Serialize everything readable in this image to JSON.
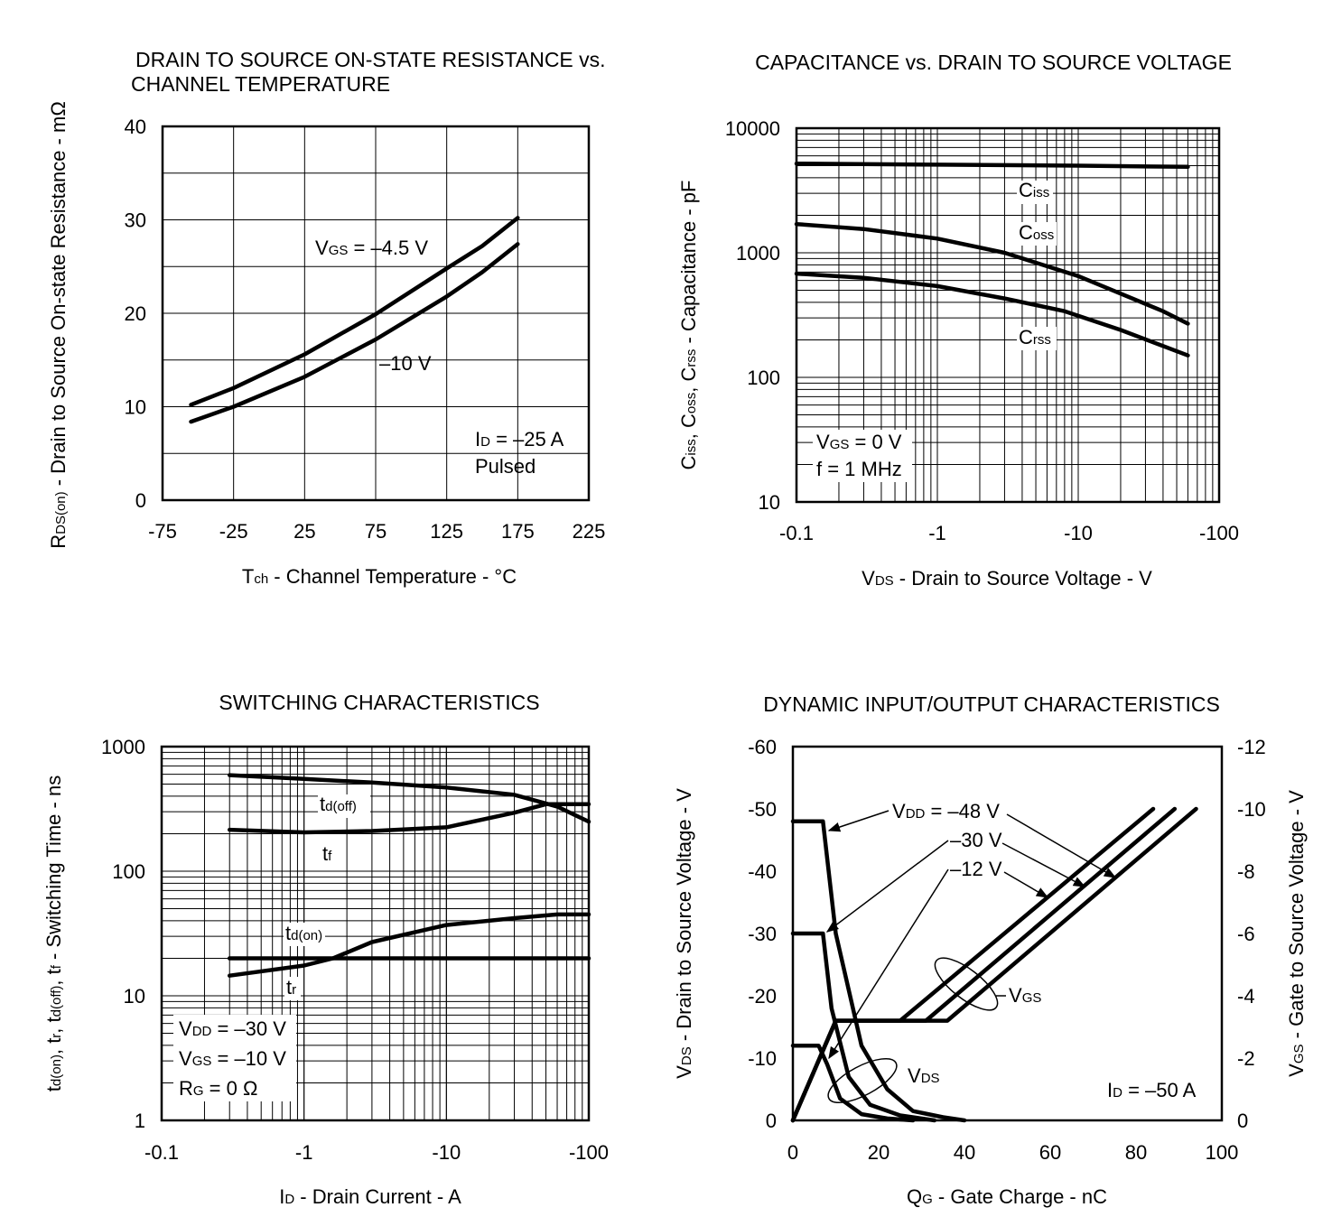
{
  "chart_data": [
    {
      "id": "rds",
      "type": "line",
      "title": [
        "DRAIN TO SOURCE ON-STATE RESISTANCE vs.",
        "CHANNEL TEMPERATURE"
      ],
      "xlabel": "Tch - Channel Temperature - °C",
      "ylabel": "RDS(on) - Drain to Source On-state Resistance - mΩ",
      "xlim": [
        -75,
        225
      ],
      "ylim": [
        0,
        40
      ],
      "xticks": [
        "-75",
        "-25",
        "25",
        "75",
        "125",
        "175",
        "225"
      ],
      "yticks": [
        "0",
        "10",
        "20",
        "30",
        "40"
      ],
      "series": [
        {
          "name": "VGS = –4.5 V",
          "x": [
            -55,
            -25,
            25,
            75,
            125,
            150,
            175
          ],
          "values": [
            10.2,
            12,
            15.6,
            19.9,
            24.8,
            27.2,
            30.2
          ]
        },
        {
          "name": "–10 V",
          "x": [
            -55,
            -25,
            25,
            75,
            125,
            150,
            175
          ],
          "values": [
            8.4,
            10.0,
            13.2,
            17.2,
            21.8,
            24.4,
            27.4
          ]
        }
      ],
      "annotations": {
        "curve1": "VGS = –4.5 V",
        "curve2": "–10 V",
        "cond1": "ID = –25 A",
        "cond2": "Pulsed"
      }
    },
    {
      "id": "cap",
      "type": "line",
      "scale": "log-log",
      "title": "CAPACITANCE vs. DRAIN TO SOURCE VOLTAGE",
      "xlabel": "VDS - Drain to Source Voltage - V",
      "ylabel": "Ciss, Coss, Crss - Capacitance - pF",
      "xlim": [
        0.1,
        100
      ],
      "ylim": [
        10,
        10000
      ],
      "xticks": [
        "-0.1",
        "-1",
        "-10",
        "-100"
      ],
      "yticks": [
        "10",
        "100",
        "1000",
        "10000"
      ],
      "series": [
        {
          "name": "Ciss",
          "x": [
            0.1,
            1,
            10,
            60
          ],
          "values": [
            5200,
            5100,
            5000,
            4900
          ]
        },
        {
          "name": "Coss",
          "x": [
            0.1,
            0.3,
            1,
            3,
            10,
            40,
            60
          ],
          "values": [
            1700,
            1550,
            1300,
            1000,
            650,
            340,
            270
          ]
        },
        {
          "name": "Crss",
          "x": [
            0.1,
            0.3,
            1,
            3,
            8,
            20,
            60
          ],
          "values": [
            680,
            630,
            540,
            430,
            340,
            240,
            150
          ]
        }
      ],
      "annotations": {
        "cond1": "VGS = 0 V",
        "cond2": "f = 1 MHz"
      }
    },
    {
      "id": "sw",
      "type": "line",
      "scale": "log-log",
      "title": "SWITCHING CHARACTERISTICS",
      "xlabel": "ID - Drain Current - A",
      "ylabel": "td(on), tr, td(off), tf - Switching Time - ns",
      "xlim": [
        0.1,
        100
      ],
      "ylim": [
        1,
        1000
      ],
      "xticks": [
        "-0.1",
        "-1",
        "-10",
        "-100"
      ],
      "yticks": [
        "1",
        "10",
        "100",
        "1000"
      ],
      "series": [
        {
          "name": "td(off)",
          "x": [
            0.3,
            1,
            3,
            10,
            30,
            60,
            100
          ],
          "values": [
            590,
            550,
            515,
            470,
            410,
            330,
            250
          ]
        },
        {
          "name": "tf",
          "x": [
            0.3,
            1,
            3,
            10,
            30,
            50,
            100
          ],
          "values": [
            215,
            205,
            210,
            225,
            295,
            345,
            345
          ]
        },
        {
          "name": "td(on)",
          "x": [
            0.3,
            1,
            1.6,
            3,
            10,
            30,
            60,
            100
          ],
          "values": [
            14.5,
            17.5,
            20,
            27,
            37,
            42,
            45,
            45
          ]
        },
        {
          "name": "tr",
          "x": [
            0.3,
            100
          ],
          "values": [
            20,
            20
          ]
        }
      ],
      "annotations": {
        "cond1": "VDD = –30 V",
        "cond2": "VGS = –10 V",
        "cond3": "RG = 0 Ω"
      }
    },
    {
      "id": "dyn",
      "type": "line",
      "title": "DYNAMIC INPUT/OUTPUT CHARACTERISTICS",
      "xlabel": "QG - Gate Charge - nC",
      "ylabel": "VDS - Drain to Source Voltage - V",
      "y2label": "VGS - Gate to Source Voltage - V",
      "xlim": [
        0,
        100
      ],
      "ylim": [
        0,
        -60
      ],
      "y2lim": [
        0,
        -12
      ],
      "xticks": [
        "0",
        "20",
        "40",
        "60",
        "80",
        "100"
      ],
      "yticks": [
        "0",
        "-10",
        "-20",
        "-30",
        "-40",
        "-50",
        "-60"
      ],
      "y2ticks": [
        "0",
        "-2",
        "-4",
        "-6",
        "-8",
        "-10",
        "-12"
      ],
      "vds_series": [
        {
          "name": "VDD = –48 V",
          "x": [
            0,
            7,
            10,
            16,
            22,
            28,
            35,
            40
          ],
          "values": [
            -48,
            -48,
            -30,
            -12,
            -5,
            -1.5,
            -0.5,
            0
          ]
        },
        {
          "name": "–30 V",
          "x": [
            0,
            7,
            9,
            13,
            18,
            25,
            33
          ],
          "values": [
            -30,
            -30,
            -18,
            -7,
            -2.5,
            -0.8,
            0
          ]
        },
        {
          "name": "–12 V",
          "x": [
            0,
            6,
            8,
            11,
            16,
            22,
            28
          ],
          "values": [
            -12,
            -12,
            -9,
            -3.5,
            -1,
            -0.3,
            0
          ]
        }
      ],
      "vgs_series": [
        {
          "name": "VGS (–48 V)",
          "x": [
            0,
            10,
            36,
            94
          ],
          "values": [
            0,
            -3.2,
            -3.2,
            -10
          ]
        },
        {
          "name": "VGS (–30 V)",
          "x": [
            0,
            10,
            31,
            89
          ],
          "values": [
            0,
            -3.2,
            -3.2,
            -10
          ]
        },
        {
          "name": "VGS (–12 V)",
          "x": [
            0,
            10,
            25,
            84
          ],
          "values": [
            0,
            -3.2,
            -3.2,
            -10
          ]
        }
      ],
      "annotations": {
        "vdd48": "VDD = –48 V",
        "vdd30": "–30 V",
        "vdd12": "–12 V",
        "vgs": "VGS",
        "vds": "VDS",
        "cond": "ID = –50 A"
      }
    }
  ]
}
